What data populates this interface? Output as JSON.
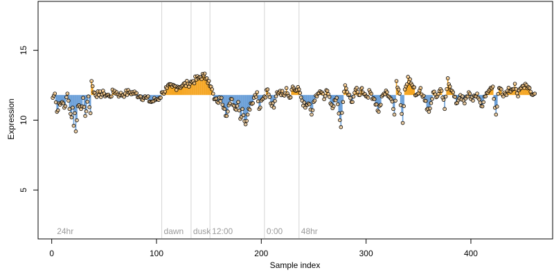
{
  "chart_data": {
    "type": "scatter",
    "title": "",
    "xlabel": "Sample index",
    "ylabel": "Expression",
    "xlim": [
      -13,
      478
    ],
    "ylim": [
      1.5,
      18.5
    ],
    "xticks": [
      0,
      100,
      200,
      300,
      400
    ],
    "yticks": [
      5,
      10,
      15
    ],
    "baseline": 11.8,
    "grid": false,
    "legend": "none",
    "colors": {
      "above": "#f5a623",
      "below": "#6a9fd8",
      "point_stroke": "#000000",
      "point_fill": "#f0c080",
      "guide": "#d3d3d3",
      "guide_label": "#9a9a9a"
    },
    "guides": [
      {
        "x": 105,
        "label": "dawn"
      },
      {
        "x": 133,
        "label": "dusk"
      },
      {
        "x": 151,
        "label": "12:00"
      },
      {
        "x": 203,
        "label": "0:00"
      },
      {
        "x": 236,
        "label": "48hr"
      }
    ],
    "corner_label": {
      "x": 3,
      "label": "24hr"
    },
    "anchors": [
      [
        1,
        11.6
      ],
      [
        3,
        11.9
      ],
      [
        5,
        10.6
      ],
      [
        7,
        11.2
      ],
      [
        10,
        11.3
      ],
      [
        13,
        11.0
      ],
      [
        15,
        11.9
      ],
      [
        17,
        10.8
      ],
      [
        19,
        10.2
      ],
      [
        20,
        10.9
      ],
      [
        21,
        9.6
      ],
      [
        22,
        10.5
      ],
      [
        23,
        9.2
      ],
      [
        25,
        11.0
      ],
      [
        28,
        10.8
      ],
      [
        30,
        11.6
      ],
      [
        32,
        10.3
      ],
      [
        35,
        11.7
      ],
      [
        37,
        10.5
      ],
      [
        38,
        12.8
      ],
      [
        40,
        12.0
      ],
      [
        45,
        11.8
      ],
      [
        50,
        11.9
      ],
      [
        55,
        11.7
      ],
      [
        60,
        12.1
      ],
      [
        65,
        11.8
      ],
      [
        70,
        11.9
      ],
      [
        75,
        12.0
      ],
      [
        80,
        11.9
      ],
      [
        85,
        11.7
      ],
      [
        90,
        11.6
      ],
      [
        95,
        11.3
      ],
      [
        100,
        11.5
      ],
      [
        103,
        11.6
      ],
      [
        106,
        12.0
      ],
      [
        110,
        12.3
      ],
      [
        115,
        12.4
      ],
      [
        120,
        12.4
      ],
      [
        125,
        12.5
      ],
      [
        130,
        12.6
      ],
      [
        135,
        12.8
      ],
      [
        140,
        13.0
      ],
      [
        145,
        13.2
      ],
      [
        148,
        13.0
      ],
      [
        150,
        12.8
      ],
      [
        152,
        12.4
      ],
      [
        155,
        11.5
      ],
      [
        158,
        11.3
      ],
      [
        162,
        11.6
      ],
      [
        165,
        10.8
      ],
      [
        167,
        10.3
      ],
      [
        170,
        11.2
      ],
      [
        172,
        11.5
      ],
      [
        175,
        10.8
      ],
      [
        178,
        11.3
      ],
      [
        180,
        10.1
      ],
      [
        182,
        10.8
      ],
      [
        185,
        9.7
      ],
      [
        187,
        10.4
      ],
      [
        190,
        11.2
      ],
      [
        193,
        11.6
      ],
      [
        196,
        12.0
      ],
      [
        198,
        10.8
      ],
      [
        200,
        11.4
      ],
      [
        203,
        11.7
      ],
      [
        206,
        12.2
      ],
      [
        209,
        11.2
      ],
      [
        212,
        10.9
      ],
      [
        215,
        12.0
      ],
      [
        218,
        12.1
      ],
      [
        221,
        11.8
      ],
      [
        224,
        12.3
      ],
      [
        227,
        11.6
      ],
      [
        230,
        12.4
      ],
      [
        233,
        12.1
      ],
      [
        236,
        12.2
      ],
      [
        239,
        11.4
      ],
      [
        242,
        10.9
      ],
      [
        245,
        11.2
      ],
      [
        248,
        10.4
      ],
      [
        251,
        11.4
      ],
      [
        254,
        11.9
      ],
      [
        257,
        12.0
      ],
      [
        260,
        11.5
      ],
      [
        263,
        12.1
      ],
      [
        266,
        11.2
      ],
      [
        269,
        11.0
      ],
      [
        272,
        11.6
      ],
      [
        275,
        10.0
      ],
      [
        276,
        9.5
      ],
      [
        278,
        11.3
      ],
      [
        280,
        12.5
      ],
      [
        283,
        11.8
      ],
      [
        286,
        11.3
      ],
      [
        290,
        12.2
      ],
      [
        293,
        11.8
      ],
      [
        296,
        12.3
      ],
      [
        300,
        11.7
      ],
      [
        304,
        12.0
      ],
      [
        308,
        11.5
      ],
      [
        312,
        10.6
      ],
      [
        316,
        11.8
      ],
      [
        320,
        12.0
      ],
      [
        324,
        11.5
      ],
      [
        327,
        10.4
      ],
      [
        329,
        12.8
      ],
      [
        332,
        11.9
      ],
      [
        335,
        9.8
      ],
      [
        337,
        12.2
      ],
      [
        340,
        13.1
      ],
      [
        344,
        12.5
      ],
      [
        348,
        11.8
      ],
      [
        352,
        12.3
      ],
      [
        356,
        11.4
      ],
      [
        360,
        10.6
      ],
      [
        364,
        12.0
      ],
      [
        368,
        11.7
      ],
      [
        372,
        12.1
      ],
      [
        375,
        10.8
      ],
      [
        378,
        13.0
      ],
      [
        382,
        12.1
      ],
      [
        386,
        11.2
      ],
      [
        390,
        11.8
      ],
      [
        394,
        11.2
      ],
      [
        398,
        12.0
      ],
      [
        402,
        11.4
      ],
      [
        406,
        11.9
      ],
      [
        410,
        11.0
      ],
      [
        414,
        11.7
      ],
      [
        418,
        12.2
      ],
      [
        421,
        12.4
      ],
      [
        424,
        10.4
      ],
      [
        427,
        12.3
      ],
      [
        431,
        11.7
      ],
      [
        435,
        12.1
      ],
      [
        439,
        12.2
      ],
      [
        442,
        12.6
      ],
      [
        445,
        11.7
      ],
      [
        448,
        12.3
      ],
      [
        452,
        12.6
      ],
      [
        456,
        12.3
      ],
      [
        459,
        11.8
      ],
      [
        461,
        11.9
      ]
    ]
  }
}
